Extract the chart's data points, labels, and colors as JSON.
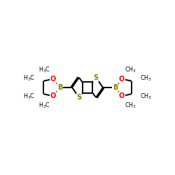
{
  "bg_color": "#ffffff",
  "atom_colors": {
    "S": "#808000",
    "B": "#808000",
    "O": "#ff0000",
    "C": "#000000"
  },
  "bond_color": "#000000",
  "bond_lw": 1.4,
  "font_size_atom": 7.0,
  "font_size_label": 5.8
}
